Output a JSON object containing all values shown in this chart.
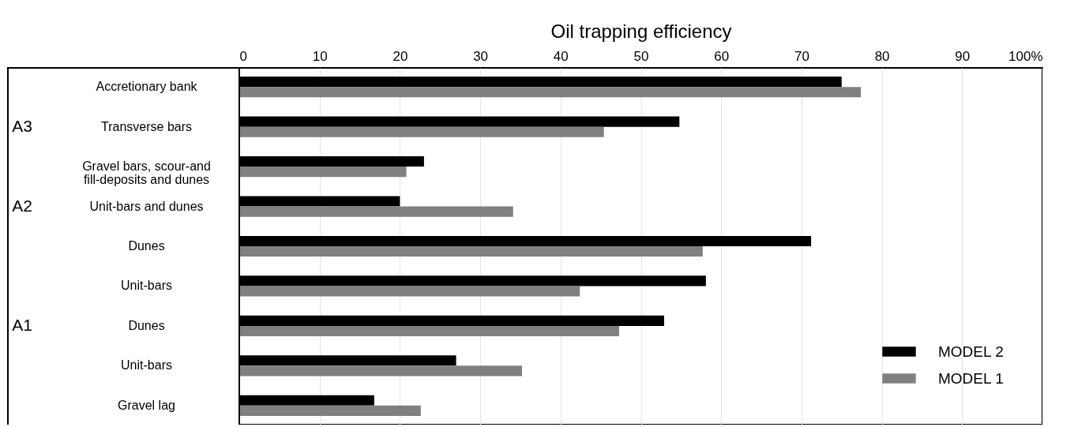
{
  "chart_data": {
    "type": "bar",
    "orientation": "horizontal",
    "xlabel": "Oil trapping efficiency",
    "categories": [
      "Accretionary bank",
      "Transverse bars",
      "Gravel bars, scour-and fill-deposits and dunes",
      "Unit-bars and dunes",
      "Dunes",
      "Unit-bars",
      "Dunes",
      "Unit-bars",
      "Gravel lag"
    ],
    "series": [
      {
        "name": "MODEL 2",
        "color": "#000000",
        "values": [
          75.0,
          54.8,
          23.0,
          20.0,
          71.2,
          58.1,
          52.9,
          27.0,
          16.8
        ]
      },
      {
        "name": "MODEL 1",
        "color": "#808080",
        "values": [
          77.4,
          45.4,
          20.8,
          34.1,
          57.7,
          42.4,
          47.3,
          35.2,
          22.6
        ]
      }
    ],
    "xlim": [
      0,
      100
    ],
    "xticks": [
      0,
      10,
      20,
      30,
      40,
      50,
      60,
      70,
      80,
      90,
      {
        "value": 100,
        "label": "100%"
      }
    ],
    "grid": "x",
    "legend": "bottom right",
    "annotations": [
      "A3",
      "A2",
      "A1"
    ]
  }
}
